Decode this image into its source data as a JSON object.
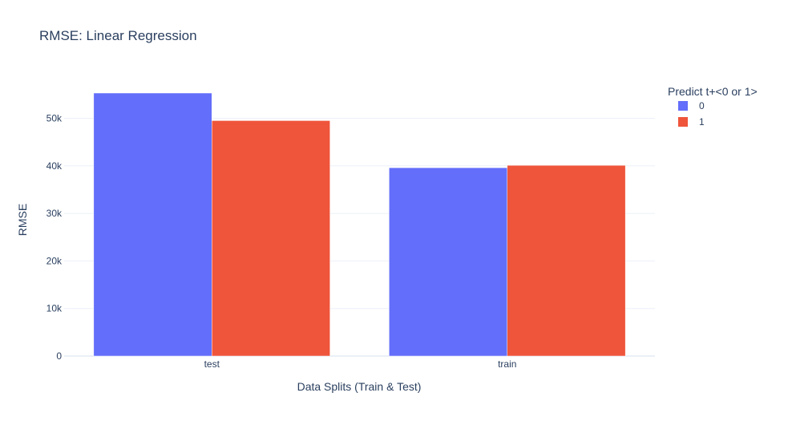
{
  "chart_data": {
    "type": "bar",
    "title": "RMSE: Linear Regression",
    "xlabel": "Data Splits (Train & Test)",
    "ylabel": "RMSE",
    "categories": [
      "test",
      "train"
    ],
    "series": [
      {
        "name": "0",
        "values": [
          55300,
          39600
        ],
        "color": "#636efa"
      },
      {
        "name": "1",
        "values": [
          49500,
          40100
        ],
        "color": "#ef553b"
      }
    ],
    "ylim": [
      0,
      58000
    ],
    "yticks": [
      0,
      10000,
      20000,
      30000,
      40000,
      50000
    ],
    "ytick_labels": [
      "0",
      "10k",
      "20k",
      "30k",
      "40k",
      "50k"
    ],
    "grid": true,
    "legend": {
      "title": "Predict t+<0 or 1>",
      "position": "top-right"
    }
  }
}
